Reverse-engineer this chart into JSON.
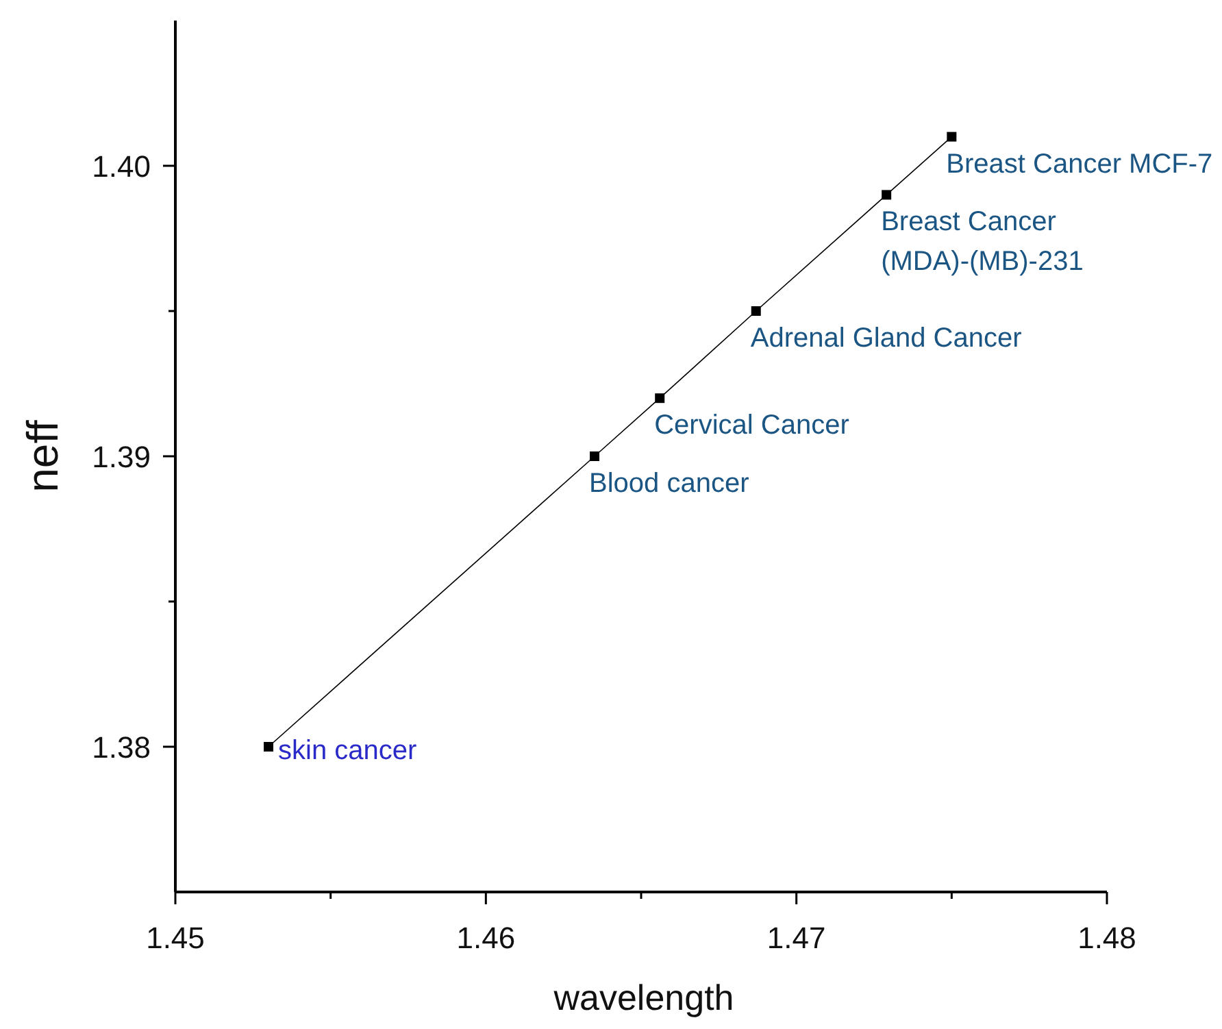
{
  "chart_data": {
    "type": "line",
    "xlabel": "wavelength",
    "ylabel": "neff",
    "x": [
      1.453,
      1.4635,
      1.4656,
      1.4687,
      1.4729,
      1.475
    ],
    "series": [
      {
        "color": "#000000",
        "values": [
          1.38,
          1.39,
          1.392,
          1.395,
          1.399,
          1.401
        ]
      }
    ],
    "marker": "square",
    "xlim": [
      1.45,
      1.48
    ],
    "xticks": [
      1.45,
      {
        "value": 1.455,
        "label": null
      },
      1.46,
      {
        "value": 1.465,
        "label": null
      },
      1.47,
      {
        "value": 1.475,
        "label": null
      },
      1.48
    ],
    "ylim": [
      1.375,
      1.405
    ],
    "yticks": [
      {
        "value": 1.38,
        "label": "1.38"
      },
      {
        "value": 1.385,
        "label": null
      },
      {
        "value": 1.39,
        "label": "1.39"
      },
      {
        "value": 1.395,
        "label": null
      },
      {
        "value": 1.4,
        "label": "1.40"
      }
    ],
    "annotations": [
      {
        "text": "skin cancer",
        "x": 1.453,
        "y": 1.38
      },
      {
        "text": "Blood cancer",
        "x": 1.4635,
        "y": 1.39
      },
      {
        "text": "Cervical Cancer",
        "x": 1.4656,
        "y": 1.392
      },
      {
        "text": "Adrenal Gland Cancer",
        "x": 1.4687,
        "y": 1.395
      },
      {
        "text": "Breast Cancer\n(MDA)-(MB)-231",
        "x": 1.4729,
        "y": 1.399
      },
      {
        "text": "Breast Cancer MCF-7",
        "x": 1.475,
        "y": 1.401
      }
    ]
  }
}
